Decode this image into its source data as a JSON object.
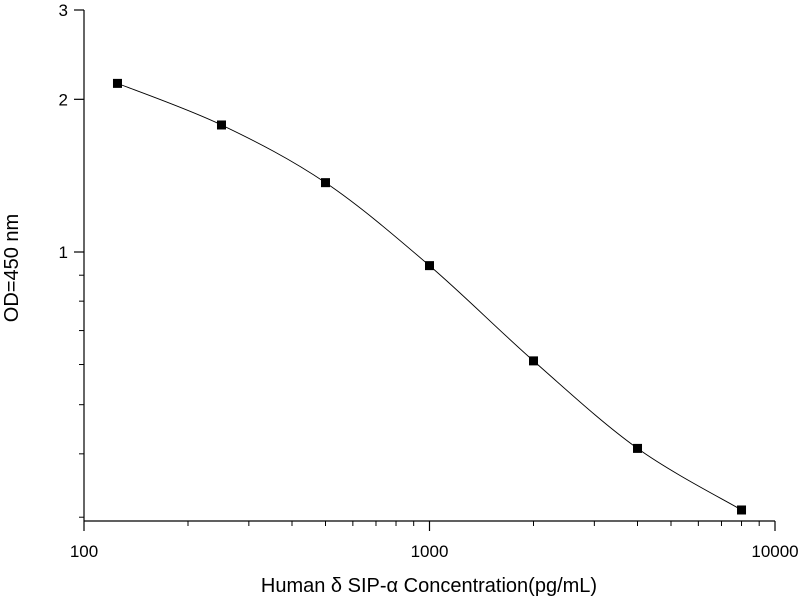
{
  "chart_data": {
    "type": "line",
    "title": "",
    "xlabel": "Human δ SIP-α Concentration(pg/mL)",
    "ylabel": "OD=450 nm",
    "xscale": "log",
    "yscale": "log",
    "xlim": [
      100,
      10000
    ],
    "ylim": [
      0.2,
      3
    ],
    "xticks": [
      100,
      1000,
      10000
    ],
    "xtick_labels": [
      "100",
      "1000",
      "10000"
    ],
    "yticks": [
      1,
      2,
      3
    ],
    "ytick_labels": [
      "1",
      "2",
      "3"
    ],
    "grid": false,
    "legend": "none",
    "marker": "square",
    "series": [
      {
        "x": [
          125,
          250,
          500,
          1000,
          2000,
          4000,
          8000
        ],
        "y": [
          2.15,
          1.78,
          1.37,
          0.94,
          0.61,
          0.41,
          0.31
        ]
      }
    ]
  }
}
